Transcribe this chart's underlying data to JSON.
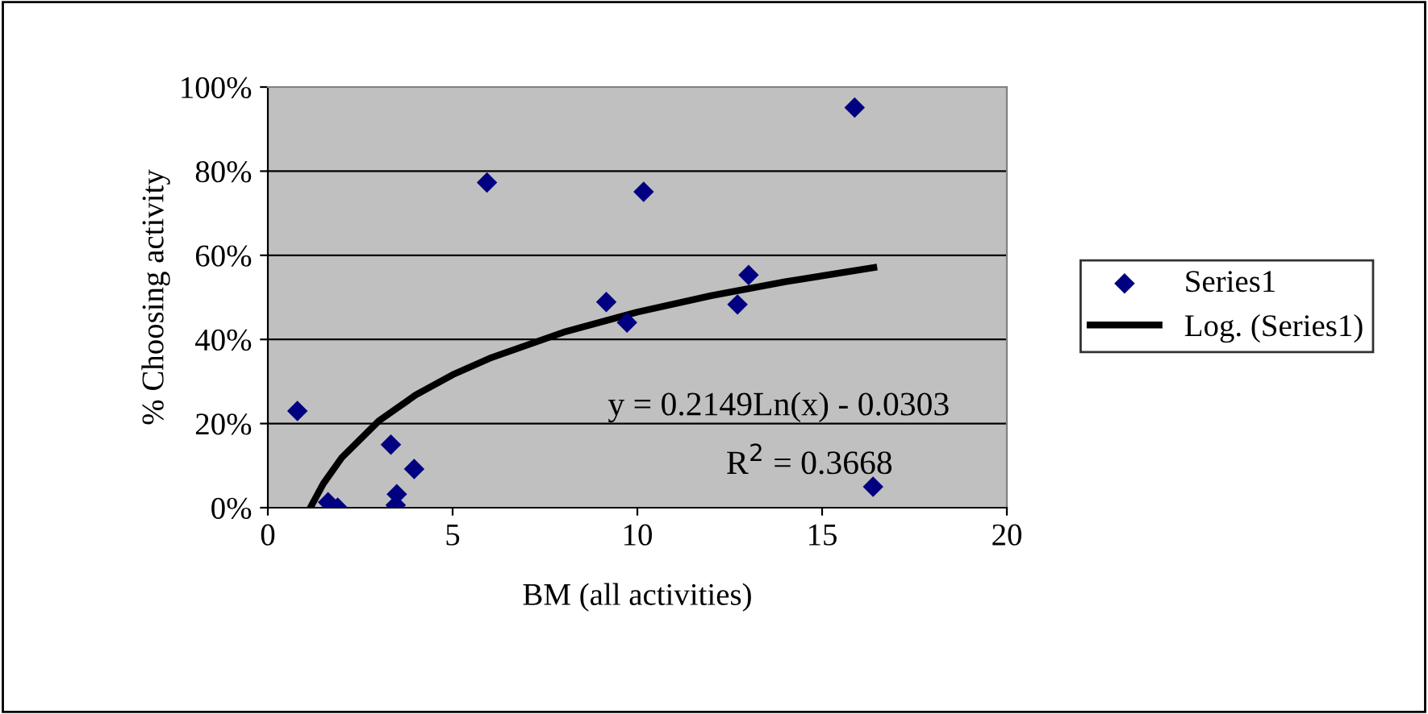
{
  "chart_data": {
    "type": "scatter",
    "xlabel": "BM (all activities)",
    "ylabel": "% Choosing activity",
    "xlim": [
      0,
      20
    ],
    "xticks": [
      0,
      5,
      10,
      15,
      20
    ],
    "ylim": [
      0,
      100
    ],
    "yticks": [
      {
        "value": 0,
        "label": "0%"
      },
      {
        "value": 20,
        "label": "20%"
      },
      {
        "value": 40,
        "label": "40%"
      },
      {
        "value": 60,
        "label": "60%"
      },
      {
        "value": 80,
        "label": "80%"
      },
      {
        "value": 100,
        "label": "100%"
      }
    ],
    "grid": "y",
    "legend": "right",
    "annotations": [
      "y = 0.2149Ln(x) - 0.0303",
      "R$^{2}$ = 0.3668"
    ],
    "series": [
      {
        "name": "Series1",
        "marker": "diamond",
        "color": "#000080",
        "x": [
          0.8,
          1.63,
          1.89,
          3.33,
          3.49,
          3.46,
          3.96,
          5.93,
          9.16,
          9.72,
          10.17,
          12.71,
          13.01,
          15.88,
          16.38
        ],
        "values": [
          23,
          1.3,
          0,
          15,
          3.2,
          0.6,
          9.2,
          77.3,
          48.9,
          44,
          75.1,
          48.3,
          55.3,
          95.1,
          5
        ]
      },
      {
        "name": "Log. (Series1)",
        "type": "line",
        "marker": "none",
        "color": "#000000",
        "x": [
          1.15,
          1.5,
          2,
          3,
          4,
          5,
          6,
          8,
          10,
          12,
          14,
          16.4
        ],
        "values": [
          0,
          5.7,
          11.9,
          20.6,
          26.8,
          31.6,
          35.5,
          41.7,
          46.5,
          50.4,
          53.7,
          57.1
        ]
      }
    ]
  }
}
